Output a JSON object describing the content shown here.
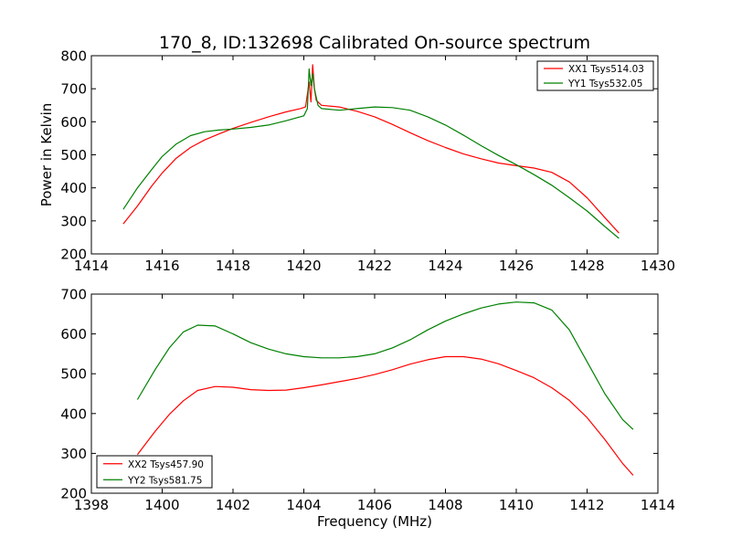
{
  "figure": {
    "title": "170_8, ID:132698 Calibrated On-source spectrum"
  },
  "chart_data": [
    {
      "type": "line",
      "title": "170_8, ID:132698 Calibrated On-source spectrum",
      "xlabel": "",
      "ylabel": "Power in Kelvin",
      "xlim": [
        1414,
        1430
      ],
      "ylim": [
        200,
        800
      ],
      "x_ticks": [
        1414,
        1416,
        1418,
        1420,
        1422,
        1424,
        1426,
        1428,
        1430
      ],
      "y_ticks": [
        200,
        300,
        400,
        500,
        600,
        700,
        800
      ],
      "legend_position": "top-right",
      "series": [
        {
          "name": "XX1 Tsys514.03",
          "color": "#ff0000",
          "x": [
            1414.9,
            1415.3,
            1415.7,
            1416.0,
            1416.4,
            1416.8,
            1417.2,
            1417.6,
            1418.0,
            1418.5,
            1419.0,
            1419.5,
            1419.9,
            1420.05,
            1420.15,
            1420.2,
            1420.25,
            1420.3,
            1420.35,
            1420.5,
            1421.0,
            1421.5,
            1422.0,
            1422.5,
            1423.0,
            1423.5,
            1424.0,
            1424.5,
            1425.0,
            1425.5,
            1426.0,
            1426.5,
            1427.0,
            1427.5,
            1428.0,
            1428.5,
            1428.9
          ],
          "y": [
            291,
            345,
            405,
            445,
            490,
            522,
            545,
            563,
            580,
            598,
            615,
            630,
            640,
            645,
            720,
            660,
            773,
            700,
            665,
            650,
            645,
            632,
            615,
            592,
            567,
            543,
            522,
            503,
            488,
            475,
            467,
            460,
            447,
            418,
            370,
            310,
            263
          ]
        },
        {
          "name": "YY1 Tsys532.05",
          "color": "#008000",
          "x": [
            1414.9,
            1415.3,
            1415.7,
            1416.0,
            1416.4,
            1416.8,
            1417.2,
            1417.6,
            1418.0,
            1418.5,
            1419.0,
            1419.5,
            1420.0,
            1420.1,
            1420.15,
            1420.2,
            1420.25,
            1420.3,
            1420.4,
            1420.5,
            1421.0,
            1421.5,
            1422.0,
            1422.5,
            1423.0,
            1423.5,
            1424.0,
            1424.5,
            1425.0,
            1425.5,
            1426.0,
            1426.5,
            1427.0,
            1427.5,
            1428.0,
            1428.5,
            1428.9
          ],
          "y": [
            335,
            400,
            455,
            495,
            533,
            558,
            570,
            575,
            578,
            583,
            590,
            603,
            618,
            640,
            760,
            710,
            745,
            700,
            650,
            640,
            635,
            640,
            645,
            643,
            635,
            615,
            590,
            560,
            528,
            498,
            470,
            440,
            408,
            370,
            330,
            283,
            247
          ]
        }
      ]
    },
    {
      "type": "line",
      "title": "",
      "xlabel": "Frequency (MHz)",
      "ylabel": "",
      "xlim": [
        1398,
        1414
      ],
      "ylim": [
        200,
        700
      ],
      "x_ticks": [
        1398,
        1400,
        1402,
        1404,
        1406,
        1408,
        1410,
        1412,
        1414
      ],
      "y_ticks": [
        200,
        300,
        400,
        500,
        600,
        700
      ],
      "legend_position": "bottom-left",
      "series": [
        {
          "name": "XX2 Tsys457.90",
          "color": "#ff0000",
          "x": [
            1399.3,
            1399.8,
            1400.2,
            1400.6,
            1401.0,
            1401.5,
            1402.0,
            1402.5,
            1403.0,
            1403.5,
            1404.0,
            1404.5,
            1405.0,
            1405.5,
            1406.0,
            1406.5,
            1407.0,
            1407.5,
            1408.0,
            1408.5,
            1409.0,
            1409.5,
            1410.0,
            1410.5,
            1411.0,
            1411.5,
            1412.0,
            1412.5,
            1413.0,
            1413.3
          ],
          "y": [
            297,
            355,
            398,
            432,
            458,
            468,
            466,
            460,
            458,
            459,
            465,
            472,
            480,
            488,
            498,
            510,
            524,
            535,
            543,
            543,
            537,
            525,
            508,
            490,
            465,
            433,
            390,
            335,
            275,
            245
          ]
        },
        {
          "name": "YY2 Tsys581.75",
          "color": "#008000",
          "x": [
            1399.3,
            1399.8,
            1400.2,
            1400.6,
            1401.0,
            1401.5,
            1402.0,
            1402.5,
            1403.0,
            1403.5,
            1404.0,
            1404.5,
            1405.0,
            1405.5,
            1406.0,
            1406.5,
            1407.0,
            1407.5,
            1408.0,
            1408.5,
            1409.0,
            1409.5,
            1410.0,
            1410.5,
            1411.0,
            1411.5,
            1412.0,
            1412.5,
            1413.0,
            1413.3
          ],
          "y": [
            435,
            510,
            565,
            605,
            622,
            620,
            600,
            578,
            562,
            550,
            543,
            540,
            540,
            543,
            550,
            565,
            585,
            610,
            632,
            650,
            665,
            675,
            680,
            678,
            660,
            610,
            530,
            450,
            385,
            360
          ]
        }
      ]
    }
  ]
}
